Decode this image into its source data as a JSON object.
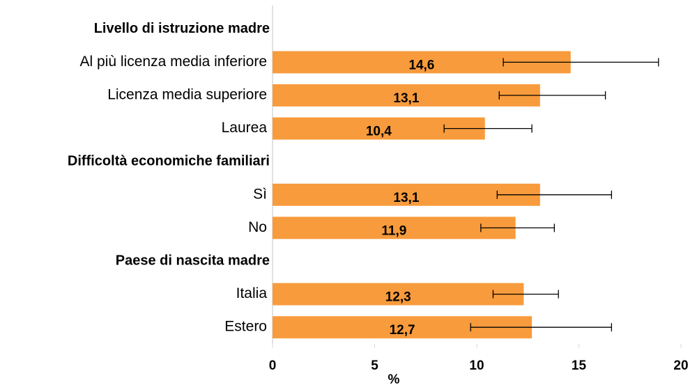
{
  "chart_data": {
    "type": "bar",
    "orientation": "horizontal",
    "color": "#f89b3c",
    "error_color": "#000000",
    "xlabel": "%",
    "xlim": [
      0,
      20
    ],
    "xticks": [
      0,
      5,
      10,
      15,
      20
    ],
    "groups": [
      {
        "name": "Livello di istruzione madre",
        "categories": [
          "Al più licenza media inferiore",
          "Licenza media superiore",
          "Laurea"
        ],
        "values": [
          14.6,
          13.1,
          10.4
        ],
        "value_labels": [
          "14,6",
          "13,1",
          "10,4"
        ],
        "lower": [
          11.3,
          11.1,
          8.4
        ],
        "upper": [
          18.9,
          16.3,
          12.7
        ]
      },
      {
        "name": "Difficoltà economiche familiari",
        "categories": [
          "Sì",
          "No"
        ],
        "values": [
          13.1,
          11.9
        ],
        "value_labels": [
          "13,1",
          "11,9"
        ],
        "lower": [
          11.0,
          10.2
        ],
        "upper": [
          16.6,
          13.8
        ]
      },
      {
        "name": "Paese di nascita madre",
        "categories": [
          "Italia",
          "Estero"
        ],
        "values": [
          12.3,
          12.7
        ],
        "value_labels": [
          "12,3",
          "12,7"
        ],
        "lower": [
          10.8,
          9.7
        ],
        "upper": [
          14.0,
          16.6
        ]
      }
    ]
  }
}
